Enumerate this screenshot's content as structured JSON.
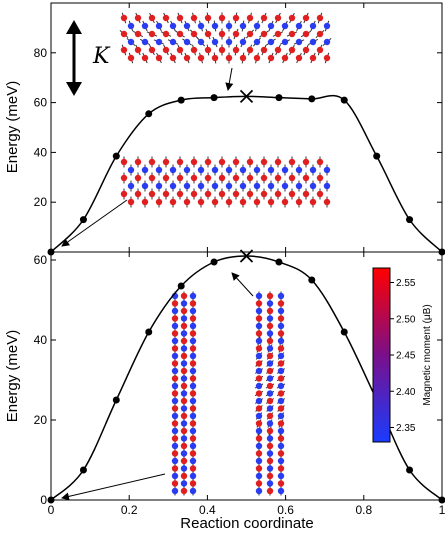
{
  "chart_data": [
    {
      "type": "line",
      "panel": "top",
      "xlabel": "",
      "ylabel": "Energy (meV)",
      "xlim": [
        0,
        1
      ],
      "ylim": [
        0,
        100
      ],
      "yticks": [
        20,
        40,
        60,
        80
      ],
      "x": [
        0,
        0.083,
        0.167,
        0.25,
        0.333,
        0.417,
        0.5,
        0.583,
        0.667,
        0.75,
        0.833,
        0.917,
        1.0
      ],
      "y": [
        0,
        13,
        38.5,
        55.5,
        61,
        62,
        62.5,
        62,
        61.5,
        61,
        38.5,
        13,
        0
      ],
      "saddle": {
        "x": 0.5,
        "y": 62.5
      },
      "annotation": "K",
      "color": "#000000"
    },
    {
      "type": "line",
      "panel": "bottom",
      "xlabel": "Reaction coordinate",
      "ylabel": "Energy (meV)",
      "xlim": [
        0,
        1
      ],
      "ylim": [
        0,
        62
      ],
      "yticks": [
        0,
        20,
        40,
        60
      ],
      "xticks": [
        "0",
        "0.2",
        "0.4",
        "0.6",
        "0.8",
        "1"
      ],
      "xtick_values": [
        0,
        0.2,
        0.4,
        0.6,
        0.8,
        1
      ],
      "x": [
        0,
        0.083,
        0.167,
        0.25,
        0.333,
        0.417,
        0.5,
        0.583,
        0.667,
        0.75,
        0.833,
        0.917,
        1.0
      ],
      "y": [
        0,
        7.5,
        25,
        42,
        53.5,
        59.5,
        61,
        59.5,
        55,
        42,
        25,
        7.5,
        0
      ],
      "saddle": {
        "x": 0.5,
        "y": 61
      },
      "colorbar": {
        "label": "Magnetic moment (μB)",
        "ticks": [
          "2.55",
          "2.50",
          "2.45",
          "2.40",
          "2.35"
        ],
        "tick_values": [
          2.55,
          2.5,
          2.45,
          2.4,
          2.35
        ],
        "range": [
          2.33,
          2.57
        ],
        "colors": [
          "#ff0000",
          "#0000ff"
        ]
      },
      "color": "#000000"
    }
  ]
}
